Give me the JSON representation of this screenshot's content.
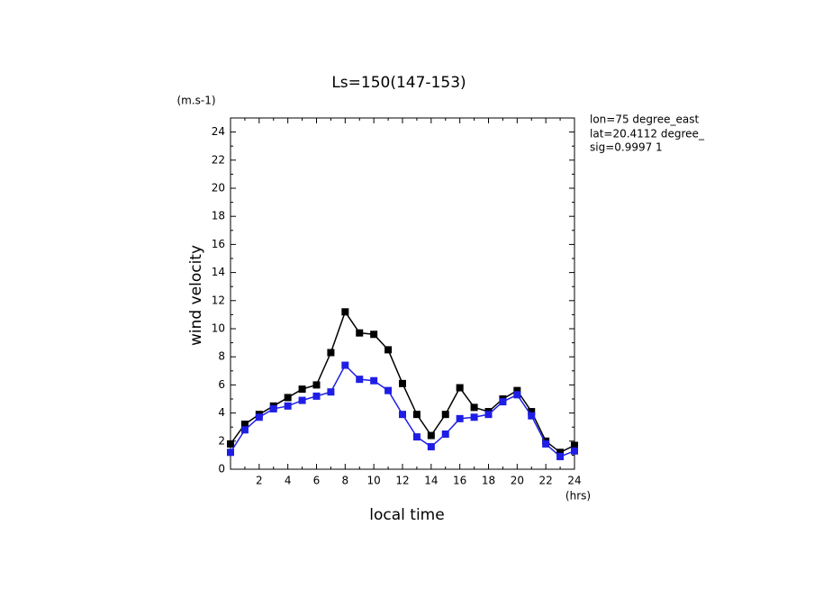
{
  "chart_data": {
    "type": "line",
    "title": "Ls=150(147-153)",
    "y_unit": "(m.s-1)",
    "y_label": "wind velocity",
    "x_label": "local time",
    "x_unit": "(hrs)",
    "annotations": [
      "lon=75 degree_east",
      "lat=20.4112 degree_",
      "sig=0.9997 1"
    ],
    "x": [
      0,
      1,
      2,
      3,
      4,
      5,
      6,
      7,
      8,
      9,
      10,
      11,
      12,
      13,
      14,
      15,
      16,
      17,
      18,
      19,
      20,
      21,
      22,
      23,
      24
    ],
    "series": [
      {
        "color": "#000000",
        "values": [
          1.8,
          3.2,
          3.9,
          4.5,
          5.1,
          5.7,
          6.0,
          8.3,
          11.2,
          9.7,
          9.6,
          8.5,
          6.1,
          3.9,
          2.4,
          3.9,
          5.8,
          4.4,
          4.1,
          5.0,
          5.6,
          4.1,
          2.0,
          1.2,
          1.7
        ]
      },
      {
        "color": "#1e1ee6",
        "values": [
          1.2,
          2.8,
          3.7,
          4.3,
          4.5,
          4.9,
          5.2,
          5.5,
          7.4,
          6.4,
          6.3,
          5.6,
          3.9,
          2.3,
          1.6,
          2.5,
          3.6,
          3.7,
          3.9,
          4.8,
          5.3,
          3.8,
          1.8,
          0.9,
          1.3
        ]
      }
    ],
    "xlim": [
      0,
      24
    ],
    "xticks": [
      2,
      4,
      6,
      8,
      10,
      12,
      14,
      16,
      18,
      20,
      22,
      24
    ],
    "ylim": [
      0,
      25
    ],
    "yticks": [
      0,
      2,
      4,
      6,
      8,
      10,
      12,
      14,
      16,
      18,
      20,
      22,
      24
    ]
  }
}
